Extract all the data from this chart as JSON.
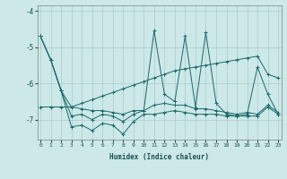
{
  "xlabel": "Humidex (Indice chaleur)",
  "background_color": "#cce8e8",
  "grid_color": "#aacccc",
  "line_color": "#1a6868",
  "x_values": [
    0,
    1,
    2,
    3,
    4,
    5,
    6,
    7,
    8,
    9,
    10,
    11,
    12,
    13,
    14,
    15,
    16,
    17,
    18,
    19,
    20,
    21,
    22,
    23
  ],
  "y_spike": [
    -4.7,
    -5.35,
    -6.2,
    -6.65,
    -6.7,
    -6.75,
    -6.75,
    -6.8,
    -6.85,
    -6.75,
    -6.75,
    -4.55,
    -6.3,
    -6.5,
    -4.7,
    -6.65,
    -4.6,
    -6.55,
    -6.85,
    -6.9,
    -6.85,
    -5.55,
    -6.3,
    -6.85
  ],
  "y_trend": [
    -6.65,
    -6.65,
    -6.65,
    -6.65,
    -6.55,
    -6.45,
    -6.35,
    -6.25,
    -6.15,
    -6.05,
    -5.95,
    -5.85,
    -5.75,
    -5.65,
    -5.6,
    -5.55,
    -5.5,
    -5.45,
    -5.4,
    -5.35,
    -5.3,
    -5.25,
    -5.75,
    -5.85
  ],
  "y_low": [
    -4.7,
    -5.35,
    -6.2,
    -7.2,
    -7.15,
    -7.3,
    -7.1,
    -7.15,
    -7.4,
    -7.05,
    -6.85,
    -6.85,
    -6.8,
    -6.75,
    -6.8,
    -6.85,
    -6.85,
    -6.85,
    -6.9,
    -6.9,
    -6.9,
    -6.9,
    -6.65,
    -6.85
  ],
  "y_mid": [
    -4.7,
    -5.35,
    -6.2,
    -6.9,
    -6.85,
    -7.0,
    -6.85,
    -6.9,
    -7.05,
    -6.85,
    -6.75,
    -6.6,
    -6.55,
    -6.6,
    -6.6,
    -6.7,
    -6.7,
    -6.75,
    -6.8,
    -6.85,
    -6.8,
    -6.85,
    -6.6,
    -6.8
  ],
  "ylim": [
    -7.55,
    -3.85
  ],
  "yticks": [
    -7,
    -6,
    -5,
    -4
  ],
  "xlim": [
    -0.3,
    23.3
  ]
}
